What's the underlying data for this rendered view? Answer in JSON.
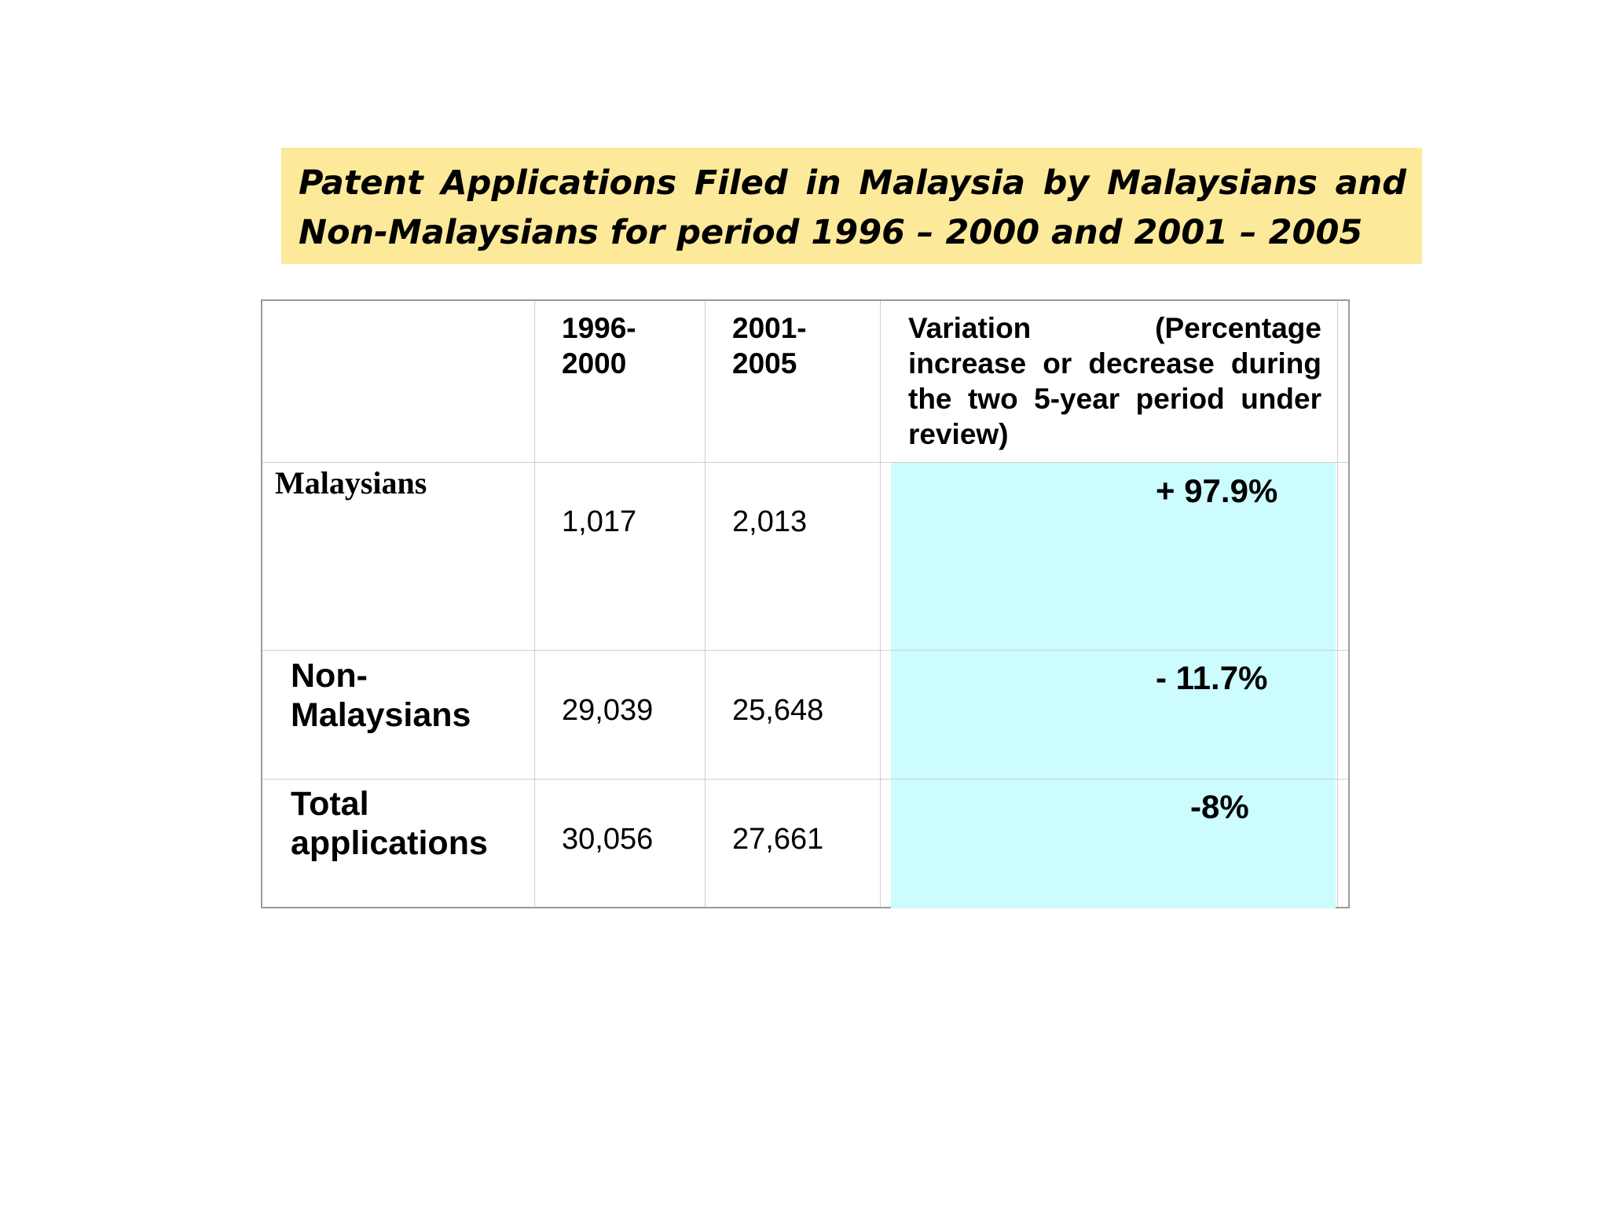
{
  "title": {
    "line1": "Patent Applications Filed in Malaysia by Malaysians and",
    "line2": "Non-Malaysians for period 1996 – 2000 and 2001 – 2005"
  },
  "table": {
    "headers": {
      "period1": [
        "1996-",
        "2000"
      ],
      "period2": [
        "2001-",
        "2005"
      ],
      "variation": "Variation (Percentage increase or decrease during the two 5-year period under review)"
    },
    "rows": [
      {
        "label": [
          "Malaysians"
        ],
        "period1": "1,017",
        "period2": "2,013",
        "variation": "+ 97.9%"
      },
      {
        "label": [
          "Non-",
          "Malaysians"
        ],
        "period1": "29,039",
        "period2": "25,648",
        "variation": "- 11.7%"
      },
      {
        "label": [
          "Total",
          "applications"
        ],
        "period1": "30,056",
        "period2": "27,661",
        "variation": "-8%"
      }
    ]
  },
  "colors": {
    "title_background": "#fde99a",
    "variation_background": "#ccfcfd",
    "border": "#9a9a9a",
    "grid": "#cfcfcf"
  }
}
